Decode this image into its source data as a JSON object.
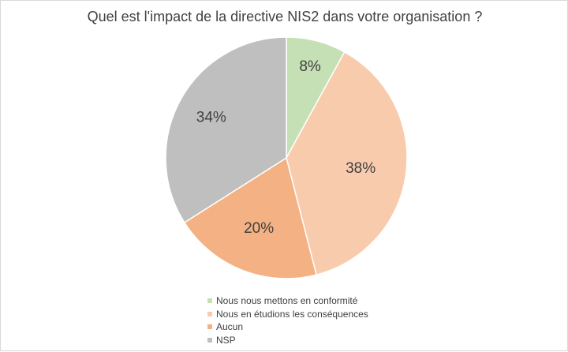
{
  "chart_data": {
    "type": "pie",
    "title": "Quel est l'impact de la directive NIS2 dans votre organisation ?",
    "categories": [
      "Nous nous mettons en conformité",
      "Nous en étudions les conséquences",
      "Aucun",
      "NSP"
    ],
    "values": [
      8,
      38,
      20,
      34
    ],
    "data_labels": [
      "8%",
      "38%",
      "20%",
      "34%"
    ],
    "colors": [
      "#c5e0b4",
      "#f8cbad",
      "#f4b183",
      "#bfbfbf"
    ],
    "legend_position": "bottom"
  }
}
